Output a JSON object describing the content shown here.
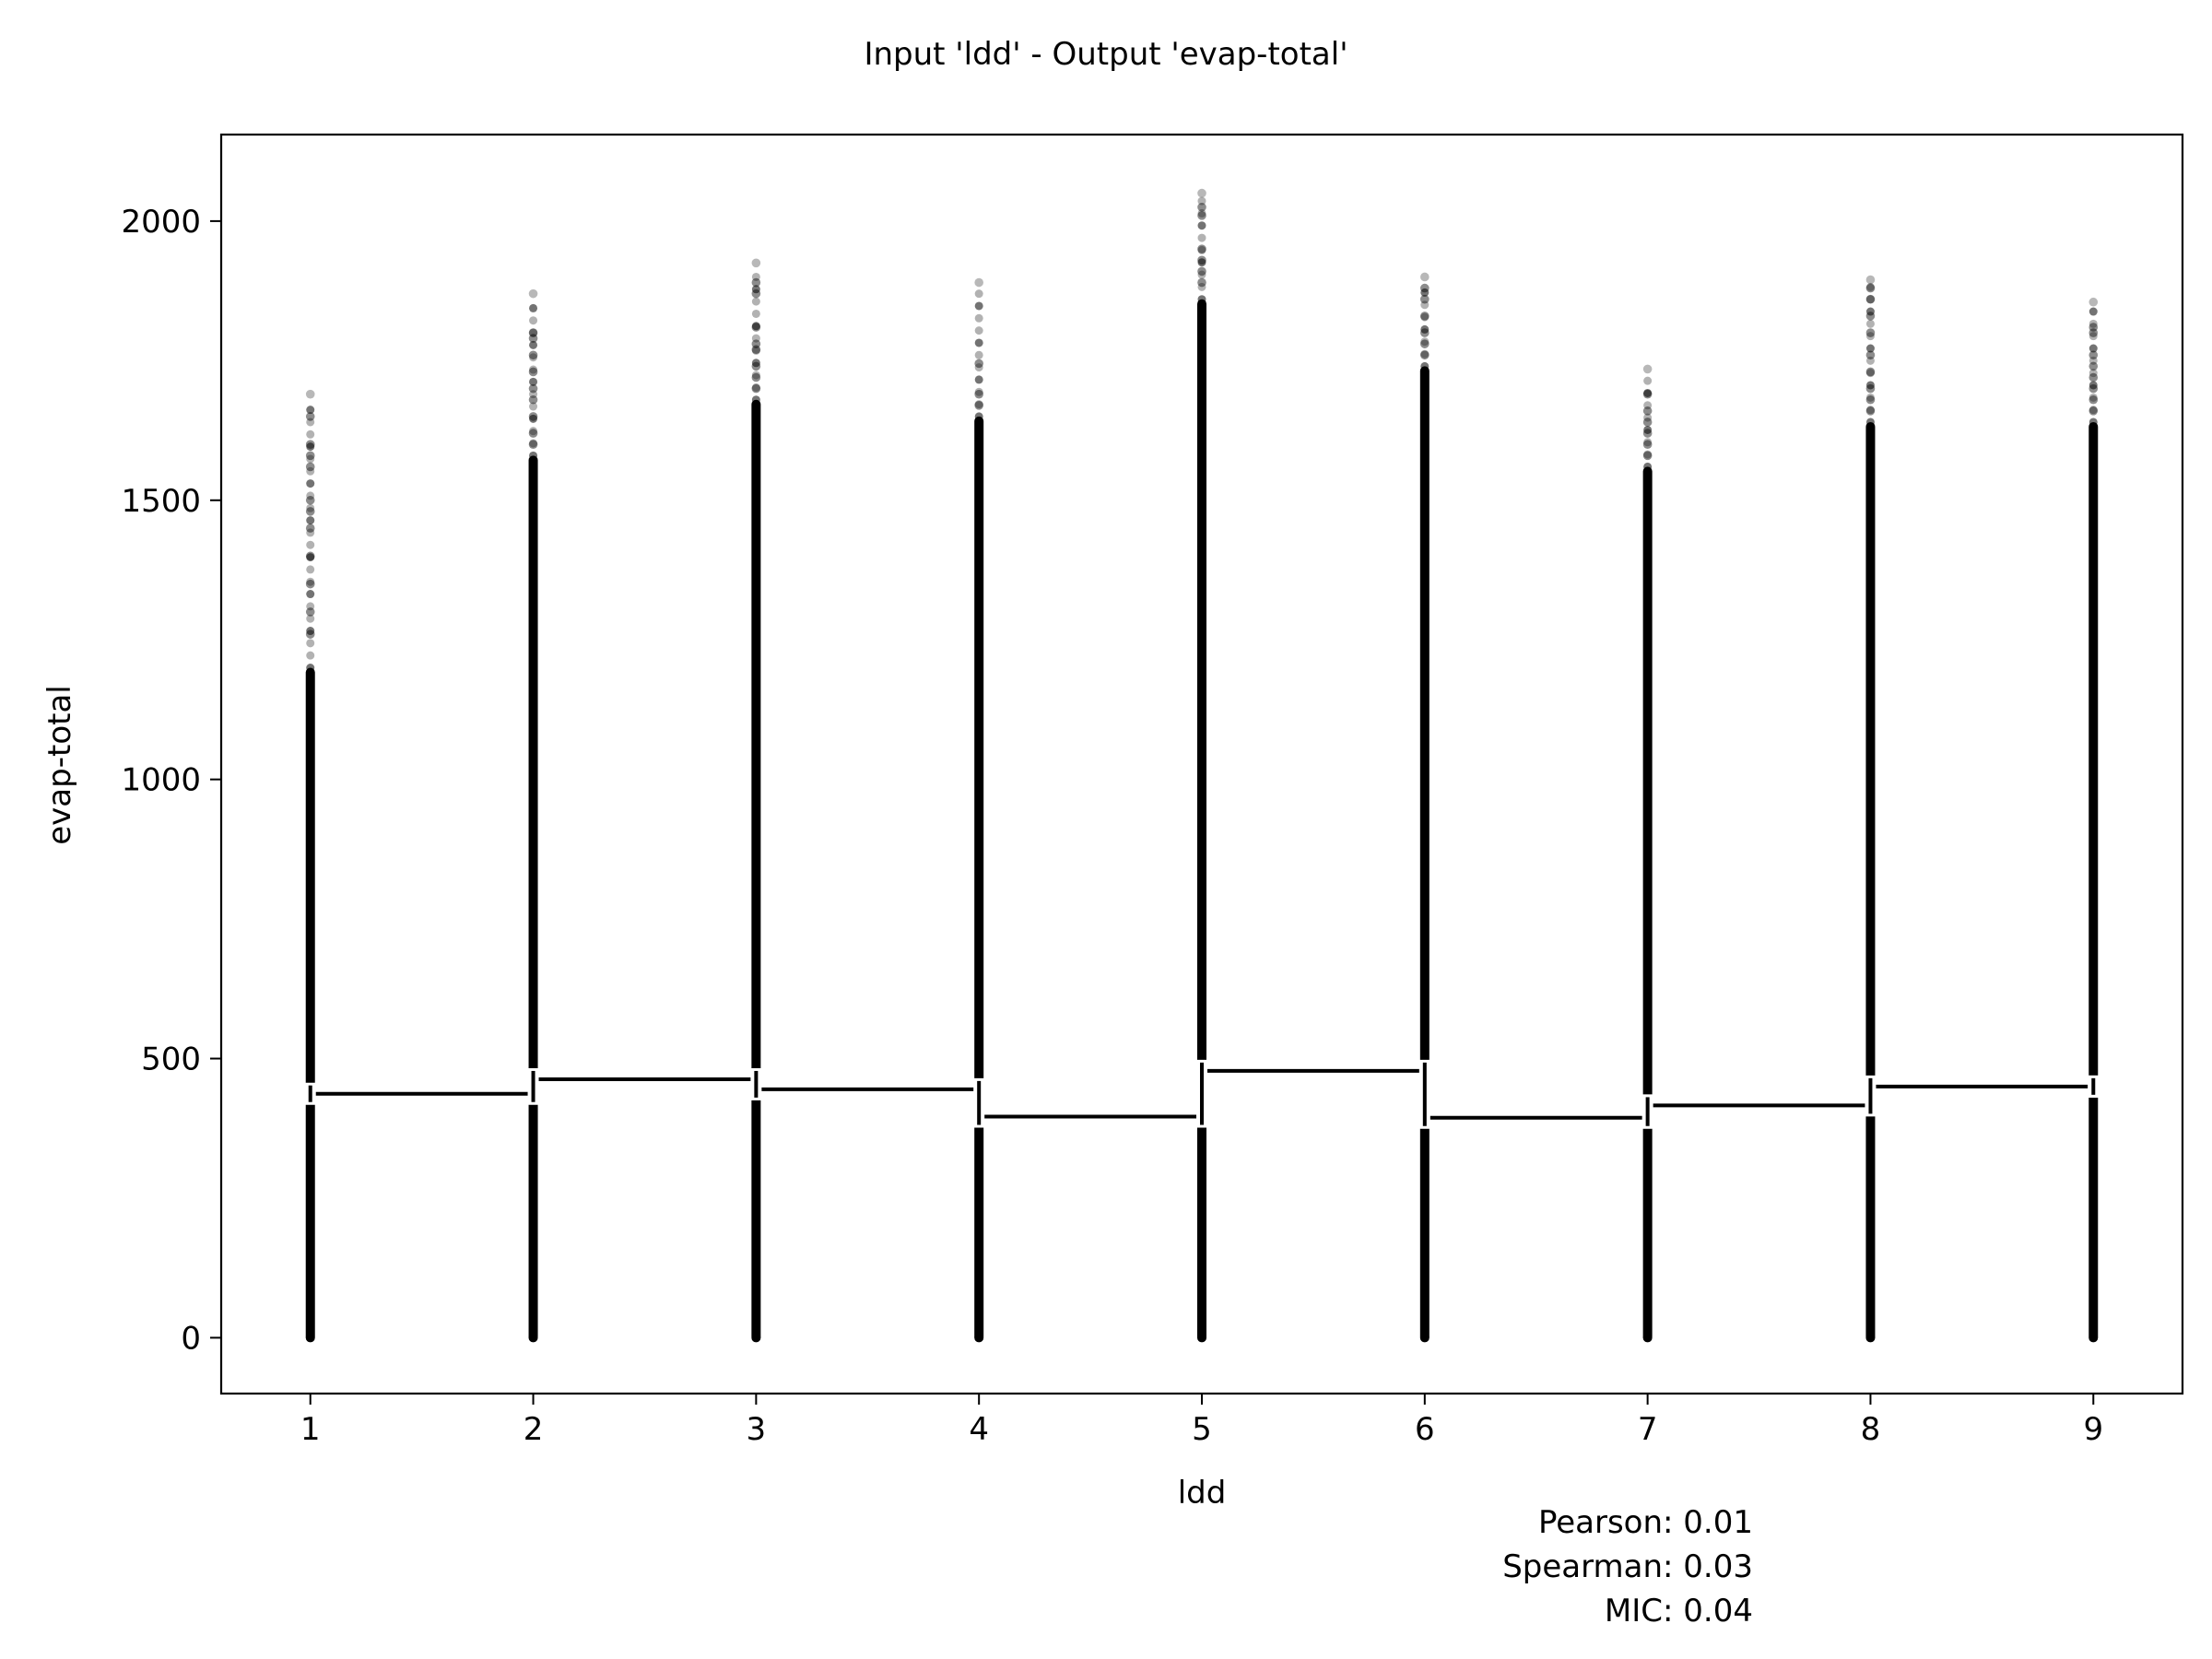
{
  "chart_data": {
    "type": "scatter",
    "title": "Input 'ldd' - Output 'evap-total'",
    "xlabel": "ldd",
    "ylabel": "evap-total",
    "xlim": [
      0.6,
      9.4
    ],
    "ylim": [
      -100,
      2155
    ],
    "x_ticks": [
      1,
      2,
      3,
      4,
      5,
      6,
      7,
      8,
      9
    ],
    "y_ticks": [
      0,
      500,
      1000,
      1500,
      2000
    ],
    "grid": false,
    "categories": [
      1,
      2,
      3,
      4,
      5,
      6,
      7,
      8,
      9
    ],
    "point_columns": [
      {
        "x": 1,
        "min": 0,
        "dense_max": 1200,
        "max": 1690,
        "outliers": [
          1690,
          1650,
          1600,
          1580,
          1560,
          1500,
          1480,
          1450,
          1400,
          1350,
          1300,
          1260
        ]
      },
      {
        "x": 2,
        "min": 0,
        "dense_max": 1580,
        "max": 1870,
        "outliers": [
          1870,
          1800,
          1790,
          1760,
          1730,
          1700,
          1680,
          1650,
          1620,
          1600
        ]
      },
      {
        "x": 3,
        "min": 0,
        "dense_max": 1680,
        "max": 1925,
        "outliers": [
          1925,
          1890,
          1870,
          1810,
          1780,
          1770,
          1740,
          1720,
          1700
        ]
      },
      {
        "x": 4,
        "min": 0,
        "dense_max": 1650,
        "max": 1890,
        "outliers": [
          1890,
          1745,
          1690,
          1670
        ]
      },
      {
        "x": 5,
        "min": 0,
        "dense_max": 1860,
        "max": 2050,
        "outliers": [
          2050,
          2025,
          2010,
          1950,
          1930,
          1910,
          1890
        ]
      },
      {
        "x": 6,
        "min": 0,
        "dense_max": 1740,
        "max": 1900,
        "outliers": [
          1900,
          1880,
          1860,
          1830,
          1800,
          1780,
          1760
        ]
      },
      {
        "x": 7,
        "min": 0,
        "dense_max": 1560,
        "max": 1735,
        "outliers": [
          1735,
          1690,
          1660,
          1640,
          1620,
          1600,
          1580
        ]
      },
      {
        "x": 8,
        "min": 0,
        "dense_max": 1640,
        "max": 1895,
        "outliers": [
          1895,
          1880,
          1860,
          1830,
          1800,
          1760,
          1730,
          1700,
          1680,
          1660
        ]
      },
      {
        "x": 9,
        "min": 0,
        "dense_max": 1640,
        "max": 1855,
        "outliers": [
          1855,
          1810,
          1800,
          1760,
          1740,
          1720,
          1700,
          1680,
          1660
        ]
      }
    ],
    "series": [
      {
        "type": "step",
        "values": [
          437,
          463,
          445,
          396,
          478,
          394,
          416,
          450,
          450
        ]
      }
    ],
    "annotations": [
      {
        "label": "Pearson",
        "value": "0.01"
      },
      {
        "label": "Spearman",
        "value": "0.03"
      },
      {
        "label": "MIC",
        "value": "0.04"
      }
    ],
    "colors": {
      "points": "#000000",
      "line": "#000000",
      "line_halo": "#ffffff"
    }
  }
}
